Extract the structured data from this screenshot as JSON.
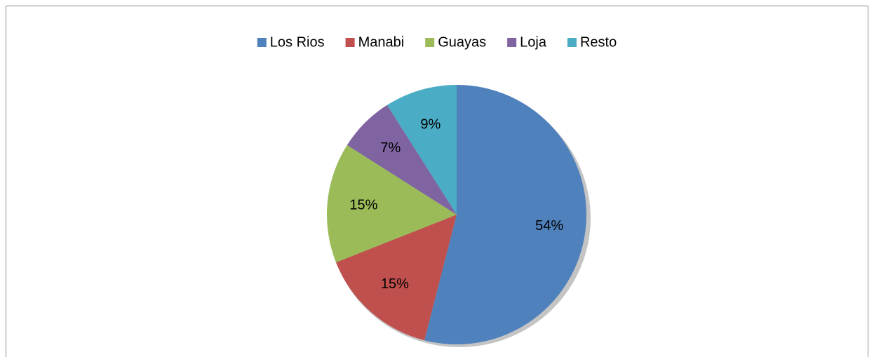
{
  "chart_data": {
    "type": "pie",
    "categories": [
      "Los Rios",
      "Manabi",
      "Guayas",
      "Loja",
      "Resto"
    ],
    "values": [
      54,
      15,
      15,
      7,
      9
    ],
    "value_labels": [
      "54%",
      "15%",
      "15%",
      "7%",
      "9%"
    ],
    "colors": [
      "#4f81bd",
      "#c0504d",
      "#9bbb59",
      "#8064a2",
      "#4bacc6"
    ],
    "legend": "top"
  }
}
